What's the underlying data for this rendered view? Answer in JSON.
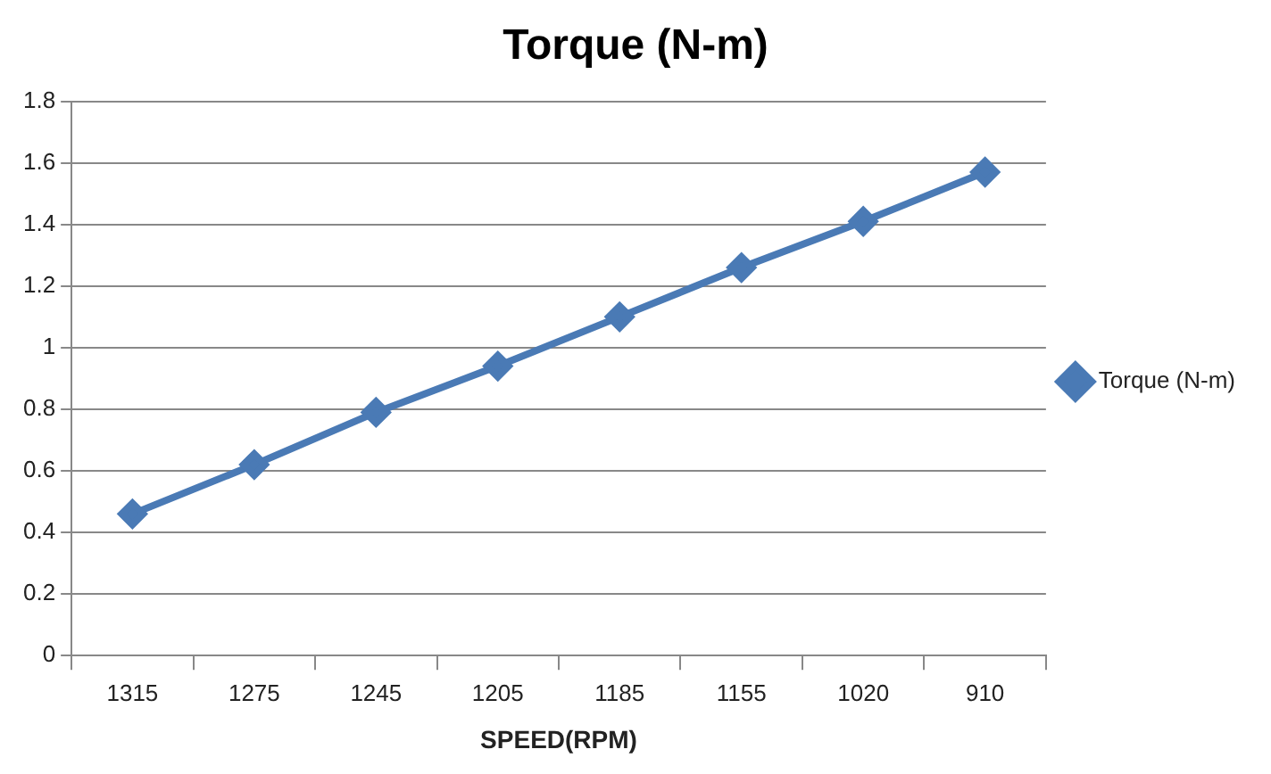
{
  "chart_data": {
    "type": "line",
    "title": "Torque (N-m)",
    "xlabel": "SPEED(RPM)",
    "categories": [
      "1315",
      "1275",
      "1245",
      "1205",
      "1185",
      "1155",
      "1020",
      "910"
    ],
    "series": [
      {
        "name": "Torque (N-m)",
        "color": "#4a7ab5",
        "values": [
          0.46,
          0.62,
          0.79,
          0.94,
          1.1,
          1.26,
          1.41,
          1.57
        ]
      }
    ],
    "ylim": [
      0,
      1.8
    ],
    "yticks": [
      0,
      0.2,
      0.4,
      0.6,
      0.8,
      1,
      1.2,
      1.4,
      1.6,
      1.8
    ],
    "grid": "y",
    "legend": "right",
    "marker": "diamond",
    "line_style": "solid"
  }
}
